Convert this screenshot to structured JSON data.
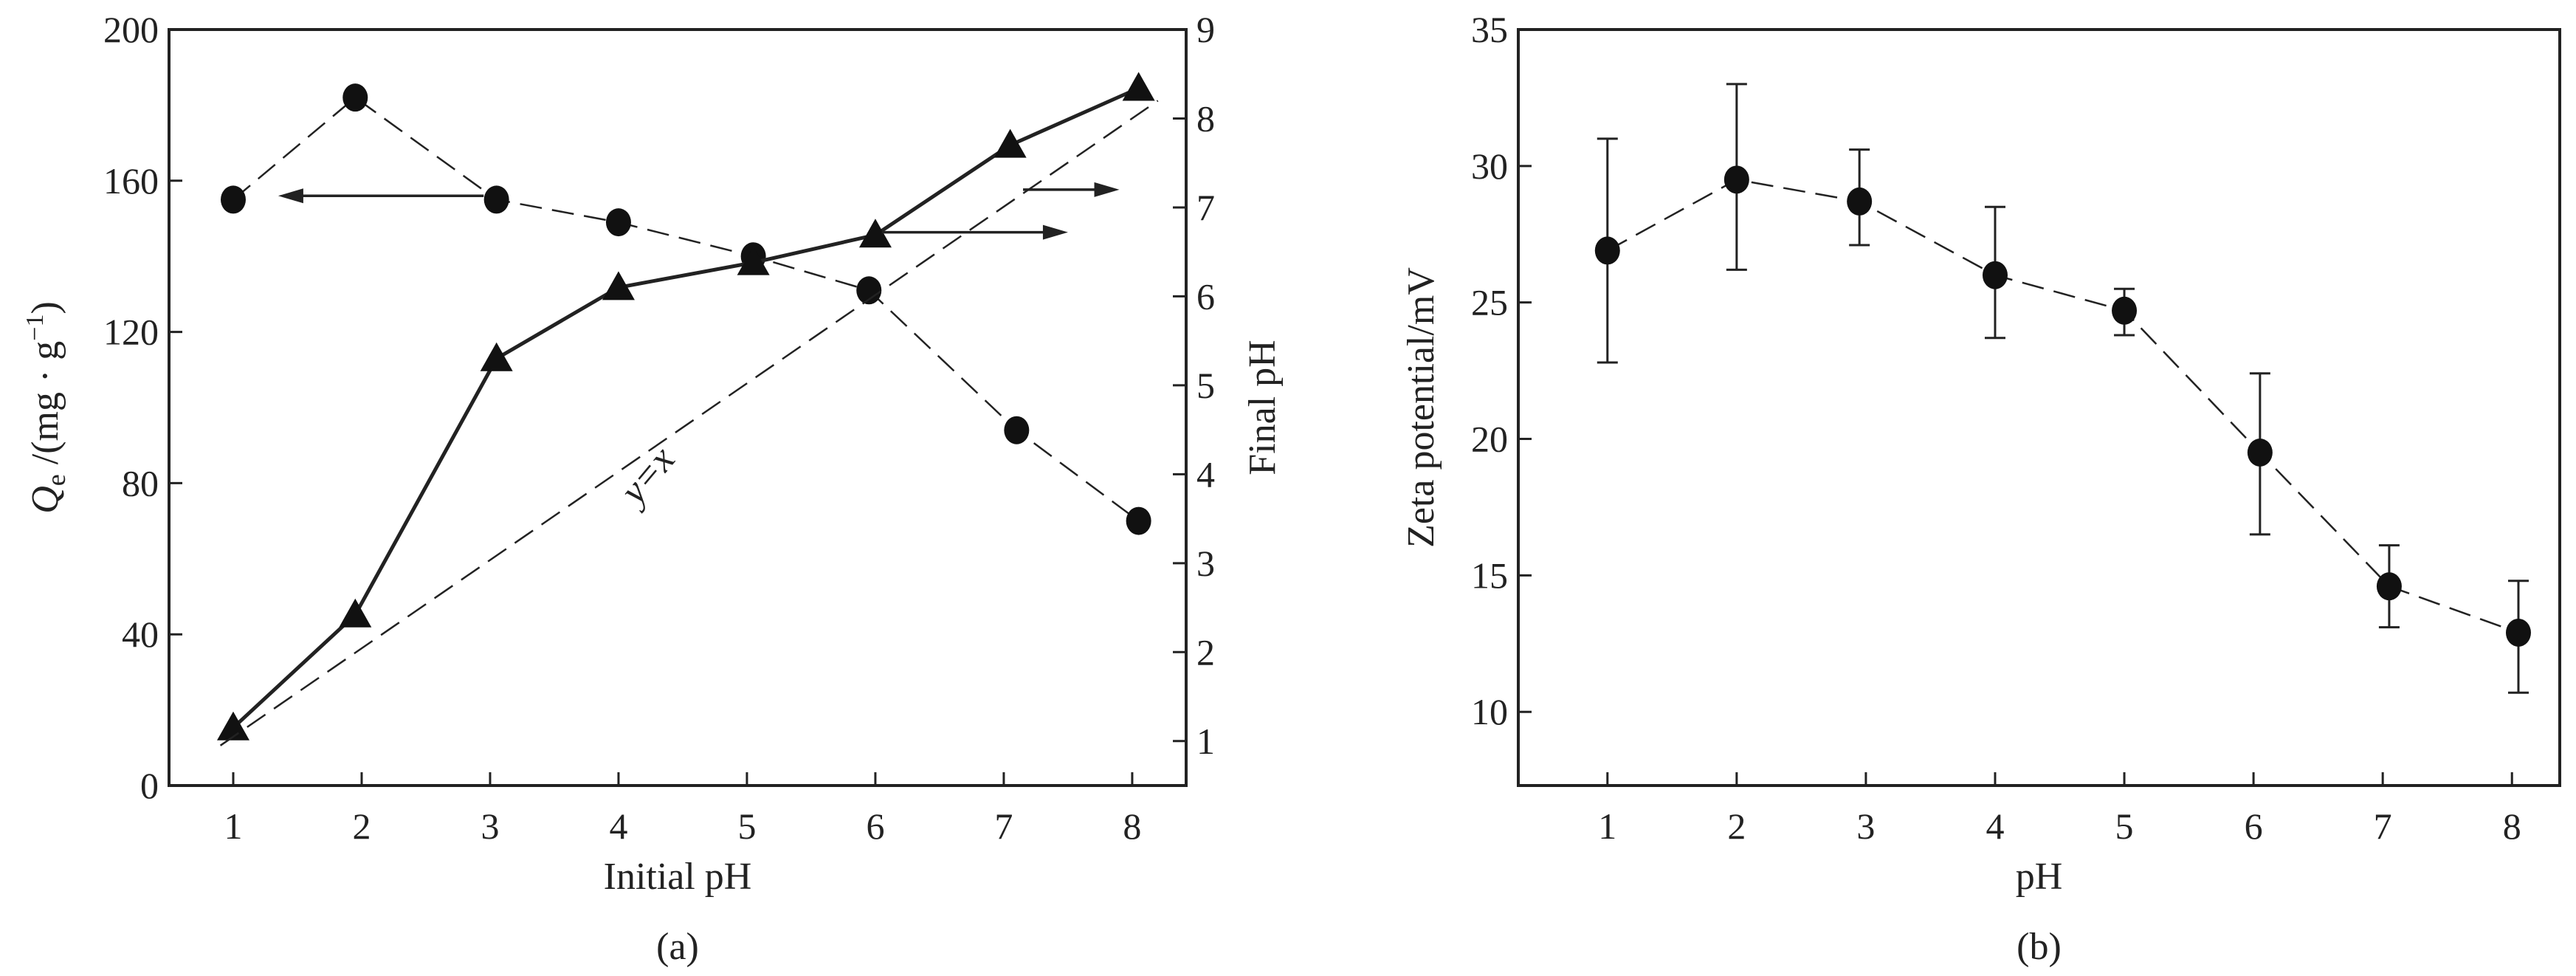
{
  "chart_data": [
    {
      "type": "line",
      "panel_label": "(a)",
      "xlabel": "Initial pH",
      "ylabel_main": "Q",
      "ylabel_sub": "e",
      "ylabel_unit": " /(mg · g",
      "ylabel_sup": "−1",
      "ylabel_close": ")",
      "y2label": "Final pH",
      "xlim": [
        0.5,
        8.42
      ],
      "ylim": [
        0,
        200
      ],
      "y2lim": [
        0.5,
        9
      ],
      "xticks": [
        "1",
        "2",
        "3",
        "4",
        "5",
        "6",
        "7",
        "8"
      ],
      "yticks": [
        "0",
        "40",
        "80",
        "120",
        "160",
        "200"
      ],
      "y2ticks": [
        "1",
        "2",
        "3",
        "4",
        "5",
        "6",
        "7",
        "8",
        "9"
      ],
      "series": [
        {
          "name": "Qe",
          "axis": "left",
          "marker": "circle",
          "line": "dashed",
          "x": [
            1,
            1.95,
            3.05,
            4,
            5.05,
            5.95,
            7.1,
            8.05
          ],
          "y": [
            155,
            182,
            155,
            149,
            140,
            131,
            94,
            70
          ]
        },
        {
          "name": "Final pH",
          "axis": "right",
          "marker": "triangle",
          "line": "solid",
          "x": [
            1,
            1.95,
            3.05,
            4,
            5.05,
            6,
            7.05,
            8.05
          ],
          "y": [
            1.15,
            2.42,
            5.3,
            6.1,
            6.38,
            6.69,
            7.7,
            8.34
          ]
        },
        {
          "name": "y=x",
          "axis": "right",
          "marker": "none",
          "line": "dashed",
          "x": [
            0.9,
            8.2
          ],
          "y": [
            0.95,
            8.2
          ]
        }
      ],
      "annotations": [
        {
          "text": "y=x",
          "x": 4.3,
          "y": 3.9,
          "axis": "right"
        }
      ],
      "arrows": [
        {
          "direction": "left",
          "axis": "left",
          "from_x": 2.95,
          "to_x": 1.35,
          "y": 156
        },
        {
          "direction": "right",
          "axis": "right",
          "from_x": 6.05,
          "to_x": 7.5,
          "y": 6.72
        },
        {
          "direction": "right",
          "axis": "right",
          "from_x": 7.15,
          "to_x": 7.9,
          "y": 7.2
        }
      ]
    },
    {
      "type": "line",
      "panel_label": "(b)",
      "xlabel": "pH",
      "ylabel": "Zeta potential/mV",
      "xlim": [
        0.31,
        8.37
      ],
      "ylim": [
        7.3,
        35
      ],
      "xticks": [
        "1",
        "2",
        "3",
        "4",
        "5",
        "6",
        "7",
        "8"
      ],
      "yticks": [
        "10",
        "15",
        "20",
        "25",
        "30",
        "35"
      ],
      "series": [
        {
          "name": "Zeta potential",
          "marker": "circle",
          "line": "dashed",
          "x": [
            1,
            2,
            2.95,
            4,
            5,
            6.05,
            7.05,
            8.05
          ],
          "y": [
            26.9,
            29.5,
            28.7,
            26.0,
            24.7,
            19.5,
            14.6,
            12.9
          ],
          "err_low": [
            22.8,
            26.2,
            27.1,
            23.7,
            23.8,
            16.5,
            13.1,
            10.7
          ],
          "err_high": [
            31.0,
            33.0,
            30.6,
            28.5,
            25.5,
            22.4,
            16.1,
            14.8
          ]
        }
      ]
    }
  ]
}
